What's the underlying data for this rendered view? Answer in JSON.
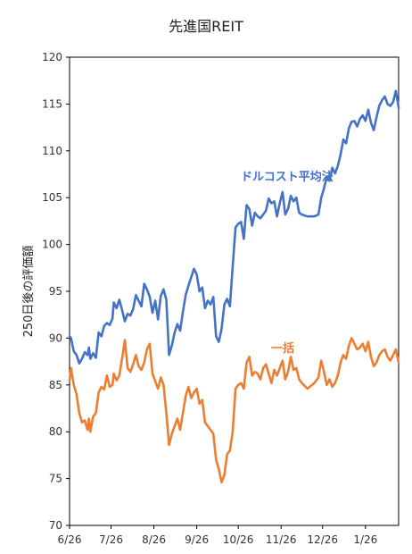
{
  "chart_data": {
    "type": "line",
    "title": "先進国REIT",
    "ylabel": "250日後の評価額",
    "xlabel": "",
    "ylim": [
      70,
      120
    ],
    "yticks": [
      70,
      75,
      80,
      85,
      90,
      95,
      100,
      105,
      110,
      115,
      120
    ],
    "xticks": [
      "6/26",
      "7/26",
      "8/26",
      "9/26",
      "10/26",
      "11/26",
      "12/26",
      "1/26"
    ],
    "x_start": "2020-06-26",
    "x_end": "2021-02-19",
    "grid": false,
    "colors": {
      "dca": "#4472C4",
      "lump": "#ED7D31"
    },
    "series": [
      {
        "name": "ドルコスト平均法",
        "color": "#4472C4",
        "points": [
          [
            "2020-06-26",
            90.2
          ],
          [
            "2020-06-27",
            90.0
          ],
          [
            "2020-06-29",
            88.6
          ],
          [
            "2020-07-01",
            88.2
          ],
          [
            "2020-07-03",
            87.3
          ],
          [
            "2020-07-05",
            87.8
          ],
          [
            "2020-07-07",
            88.5
          ],
          [
            "2020-07-09",
            88.2
          ],
          [
            "2020-07-10",
            89.0
          ],
          [
            "2020-07-11",
            87.8
          ],
          [
            "2020-07-13",
            88.4
          ],
          [
            "2020-07-15",
            87.9
          ],
          [
            "2020-07-17",
            90.6
          ],
          [
            "2020-07-19",
            90.2
          ],
          [
            "2020-07-21",
            91.3
          ],
          [
            "2020-07-23",
            91.6
          ],
          [
            "2020-07-25",
            91.4
          ],
          [
            "2020-07-27",
            92.1
          ],
          [
            "2020-07-28",
            93.8
          ],
          [
            "2020-07-30",
            93.2
          ],
          [
            "2020-08-01",
            94.1
          ],
          [
            "2020-08-03",
            93.0
          ],
          [
            "2020-08-05",
            91.8
          ],
          [
            "2020-08-07",
            92.6
          ],
          [
            "2020-08-09",
            92.4
          ],
          [
            "2020-08-11",
            93.1
          ],
          [
            "2020-08-13",
            94.6
          ],
          [
            "2020-08-15",
            94.0
          ],
          [
            "2020-08-17",
            93.4
          ],
          [
            "2020-08-19",
            95.8
          ],
          [
            "2020-08-21",
            95.2
          ],
          [
            "2020-08-23",
            94.4
          ],
          [
            "2020-08-25",
            92.7
          ],
          [
            "2020-08-27",
            94.0
          ],
          [
            "2020-08-29",
            92.0
          ],
          [
            "2020-08-31",
            94.5
          ],
          [
            "2020-09-02",
            95.2
          ],
          [
            "2020-09-04",
            94.1
          ],
          [
            "2020-09-06",
            88.2
          ],
          [
            "2020-09-08",
            89.2
          ],
          [
            "2020-09-10",
            90.6
          ],
          [
            "2020-09-12",
            91.5
          ],
          [
            "2020-09-14",
            90.8
          ],
          [
            "2020-09-16",
            92.8
          ],
          [
            "2020-09-18",
            94.6
          ],
          [
            "2020-09-20",
            95.6
          ],
          [
            "2020-09-22",
            96.5
          ],
          [
            "2020-09-24",
            97.4
          ],
          [
            "2020-09-26",
            96.8
          ],
          [
            "2020-09-28",
            95.0
          ],
          [
            "2020-09-30",
            95.4
          ],
          [
            "2020-10-02",
            93.2
          ],
          [
            "2020-10-04",
            94.0
          ],
          [
            "2020-10-06",
            93.6
          ],
          [
            "2020-10-08",
            94.4
          ],
          [
            "2020-10-10",
            90.2
          ],
          [
            "2020-10-12",
            89.6
          ],
          [
            "2020-10-14",
            91.0
          ],
          [
            "2020-10-16",
            93.6
          ],
          [
            "2020-10-18",
            94.2
          ],
          [
            "2020-10-20",
            93.4
          ],
          [
            "2020-10-22",
            97.6
          ],
          [
            "2020-10-24",
            101.8
          ],
          [
            "2020-10-26",
            102.2
          ],
          [
            "2020-10-28",
            102.4
          ],
          [
            "2020-10-30",
            100.6
          ],
          [
            "2020-11-01",
            104.2
          ],
          [
            "2020-11-03",
            103.8
          ],
          [
            "2020-11-05",
            102.0
          ],
          [
            "2020-11-07",
            103.4
          ],
          [
            "2020-11-09",
            103.0
          ],
          [
            "2020-11-11",
            102.8
          ],
          [
            "2020-11-13",
            103.2
          ],
          [
            "2020-11-15",
            103.6
          ],
          [
            "2020-11-17",
            104.9
          ],
          [
            "2020-11-19",
            104.4
          ],
          [
            "2020-11-21",
            104.6
          ],
          [
            "2020-11-23",
            103.0
          ],
          [
            "2020-11-25",
            104.4
          ],
          [
            "2020-11-27",
            105.6
          ],
          [
            "2020-11-29",
            103.2
          ],
          [
            "2020-12-01",
            103.8
          ],
          [
            "2020-12-03",
            105.2
          ],
          [
            "2020-12-05",
            104.6
          ],
          [
            "2020-12-07",
            105.0
          ],
          [
            "2020-12-09",
            103.4
          ],
          [
            "2020-12-11",
            103.2
          ],
          [
            "2020-12-15",
            103.0
          ],
          [
            "2020-12-20",
            103.0
          ],
          [
            "2020-12-23",
            103.2
          ],
          [
            "2020-12-25",
            105.0
          ],
          [
            "2020-12-27",
            106.0
          ],
          [
            "2020-12-29",
            107.2
          ],
          [
            "2020-12-31",
            106.8
          ],
          [
            "2021-01-02",
            108.2
          ],
          [
            "2021-01-04",
            107.6
          ],
          [
            "2021-01-06",
            108.4
          ],
          [
            "2021-01-08",
            109.6
          ],
          [
            "2021-01-10",
            111.2
          ],
          [
            "2021-01-12",
            110.8
          ],
          [
            "2021-01-14",
            112.4
          ],
          [
            "2021-01-16",
            113.1
          ],
          [
            "2021-01-18",
            113.2
          ],
          [
            "2021-01-20",
            112.6
          ],
          [
            "2021-01-22",
            113.4
          ],
          [
            "2021-01-24",
            113.8
          ],
          [
            "2021-01-26",
            113.2
          ],
          [
            "2021-01-28",
            114.4
          ],
          [
            "2021-01-30",
            113.0
          ],
          [
            "2021-02-01",
            112.2
          ],
          [
            "2021-02-03",
            113.6
          ],
          [
            "2021-02-05",
            114.8
          ],
          [
            "2021-02-07",
            115.4
          ],
          [
            "2021-02-09",
            115.8
          ],
          [
            "2021-02-11",
            115.0
          ],
          [
            "2021-02-13",
            114.8
          ],
          [
            "2021-02-15",
            115.2
          ],
          [
            "2021-02-17",
            116.4
          ],
          [
            "2021-02-19",
            114.6
          ]
        ]
      },
      {
        "name": "一括",
        "color": "#ED7D31",
        "points": [
          [
            "2020-06-26",
            85.5
          ],
          [
            "2020-06-27",
            86.8
          ],
          [
            "2020-06-29",
            85.0
          ],
          [
            "2020-07-01",
            84.0
          ],
          [
            "2020-07-03",
            82.0
          ],
          [
            "2020-07-05",
            81.0
          ],
          [
            "2020-07-07",
            81.2
          ],
          [
            "2020-07-09",
            80.2
          ],
          [
            "2020-07-10",
            81.4
          ],
          [
            "2020-07-11",
            80.0
          ],
          [
            "2020-07-13",
            81.6
          ],
          [
            "2020-07-15",
            82.0
          ],
          [
            "2020-07-17",
            84.2
          ],
          [
            "2020-07-19",
            84.8
          ],
          [
            "2020-07-21",
            84.5
          ],
          [
            "2020-07-23",
            86.0
          ],
          [
            "2020-07-25",
            84.8
          ],
          [
            "2020-07-27",
            85.0
          ],
          [
            "2020-07-28",
            86.2
          ],
          [
            "2020-07-30",
            85.5
          ],
          [
            "2020-08-01",
            86.0
          ],
          [
            "2020-08-03",
            87.8
          ],
          [
            "2020-08-05",
            89.8
          ],
          [
            "2020-08-07",
            86.8
          ],
          [
            "2020-08-09",
            86.4
          ],
          [
            "2020-08-11",
            87.2
          ],
          [
            "2020-08-13",
            88.2
          ],
          [
            "2020-08-15",
            87.0
          ],
          [
            "2020-08-17",
            86.6
          ],
          [
            "2020-08-19",
            87.4
          ],
          [
            "2020-08-21",
            88.8
          ],
          [
            "2020-08-23",
            89.4
          ],
          [
            "2020-08-25",
            86.2
          ],
          [
            "2020-08-27",
            85.4
          ],
          [
            "2020-08-29",
            84.6
          ],
          [
            "2020-08-31",
            85.8
          ],
          [
            "2020-09-02",
            85.0
          ],
          [
            "2020-09-04",
            82.0
          ],
          [
            "2020-09-06",
            78.6
          ],
          [
            "2020-09-08",
            79.8
          ],
          [
            "2020-09-10",
            80.6
          ],
          [
            "2020-09-12",
            81.4
          ],
          [
            "2020-09-14",
            80.2
          ],
          [
            "2020-09-16",
            82.0
          ],
          [
            "2020-09-18",
            83.8
          ],
          [
            "2020-09-20",
            84.8
          ],
          [
            "2020-09-22",
            83.6
          ],
          [
            "2020-09-24",
            84.2
          ],
          [
            "2020-09-26",
            84.6
          ],
          [
            "2020-09-28",
            83.0
          ],
          [
            "2020-09-30",
            83.4
          ],
          [
            "2020-10-02",
            81.0
          ],
          [
            "2020-10-04",
            80.6
          ],
          [
            "2020-10-06",
            80.2
          ],
          [
            "2020-10-08",
            79.8
          ],
          [
            "2020-10-10",
            77.0
          ],
          [
            "2020-10-12",
            76.0
          ],
          [
            "2020-10-14",
            74.6
          ],
          [
            "2020-10-16",
            75.4
          ],
          [
            "2020-10-18",
            77.6
          ],
          [
            "2020-10-20",
            78.0
          ],
          [
            "2020-10-22",
            80.0
          ],
          [
            "2020-10-24",
            84.6
          ],
          [
            "2020-10-26",
            85.0
          ],
          [
            "2020-10-28",
            85.2
          ],
          [
            "2020-10-30",
            84.6
          ],
          [
            "2020-11-01",
            87.4
          ],
          [
            "2020-11-03",
            88.0
          ],
          [
            "2020-11-05",
            86.0
          ],
          [
            "2020-11-07",
            86.4
          ],
          [
            "2020-11-09",
            86.2
          ],
          [
            "2020-11-11",
            85.6
          ],
          [
            "2020-11-13",
            86.8
          ],
          [
            "2020-11-15",
            87.2
          ],
          [
            "2020-11-17",
            86.2
          ],
          [
            "2020-11-19",
            85.2
          ],
          [
            "2020-11-21",
            86.6
          ],
          [
            "2020-11-23",
            86.0
          ],
          [
            "2020-11-25",
            86.8
          ],
          [
            "2020-11-27",
            87.6
          ],
          [
            "2020-11-29",
            85.6
          ],
          [
            "2020-12-01",
            86.4
          ],
          [
            "2020-12-03",
            88.0
          ],
          [
            "2020-12-05",
            86.6
          ],
          [
            "2020-12-07",
            86.8
          ],
          [
            "2020-12-09",
            85.6
          ],
          [
            "2020-12-11",
            85.2
          ],
          [
            "2020-12-15",
            84.6
          ],
          [
            "2020-12-20",
            85.2
          ],
          [
            "2020-12-23",
            85.8
          ],
          [
            "2020-12-25",
            87.6
          ],
          [
            "2020-12-27",
            86.4
          ],
          [
            "2020-12-29",
            85.0
          ],
          [
            "2020-12-31",
            85.6
          ],
          [
            "2021-01-02",
            84.8
          ],
          [
            "2021-01-04",
            85.2
          ],
          [
            "2021-01-06",
            86.0
          ],
          [
            "2021-01-08",
            87.4
          ],
          [
            "2021-01-10",
            88.2
          ],
          [
            "2021-01-12",
            87.8
          ],
          [
            "2021-01-14",
            89.2
          ],
          [
            "2021-01-16",
            90.0
          ],
          [
            "2021-01-18",
            89.4
          ],
          [
            "2021-01-20",
            88.8
          ],
          [
            "2021-01-22",
            89.0
          ],
          [
            "2021-01-24",
            89.4
          ],
          [
            "2021-01-26",
            88.6
          ],
          [
            "2021-01-28",
            89.6
          ],
          [
            "2021-01-30",
            88.0
          ],
          [
            "2021-02-01",
            87.0
          ],
          [
            "2021-02-03",
            87.4
          ],
          [
            "2021-02-05",
            88.2
          ],
          [
            "2021-02-07",
            88.6
          ],
          [
            "2021-02-09",
            88.8
          ],
          [
            "2021-02-11",
            88.0
          ],
          [
            "2021-02-13",
            87.6
          ],
          [
            "2021-02-15",
            88.2
          ],
          [
            "2021-02-17",
            88.8
          ],
          [
            "2021-02-19",
            87.4
          ]
        ]
      }
    ]
  }
}
